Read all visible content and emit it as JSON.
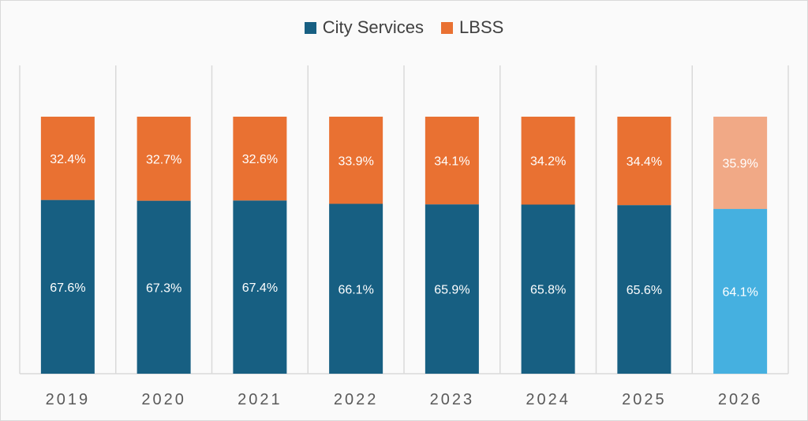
{
  "chart_data": {
    "type": "bar",
    "stacked": true,
    "percent_stacked": true,
    "categories": [
      "2019",
      "2020",
      "2021",
      "2022",
      "2023",
      "2024",
      "2025",
      "2026"
    ],
    "series": [
      {
        "name": "City Services",
        "values": [
          67.6,
          67.3,
          67.4,
          66.1,
          65.9,
          65.8,
          65.6,
          64.1
        ],
        "color": "#175f82",
        "highlight_color": "#45b0e0"
      },
      {
        "name": "LBSS",
        "values": [
          32.4,
          32.7,
          32.6,
          33.9,
          34.1,
          34.2,
          34.4,
          35.9
        ],
        "color": "#e97132",
        "highlight_color": "#f1a986"
      }
    ],
    "highlighted_category": "2026",
    "data_label_format": "{v}%",
    "ylim": [
      0,
      100
    ],
    "grid": "vertical separators",
    "legend": "top"
  }
}
